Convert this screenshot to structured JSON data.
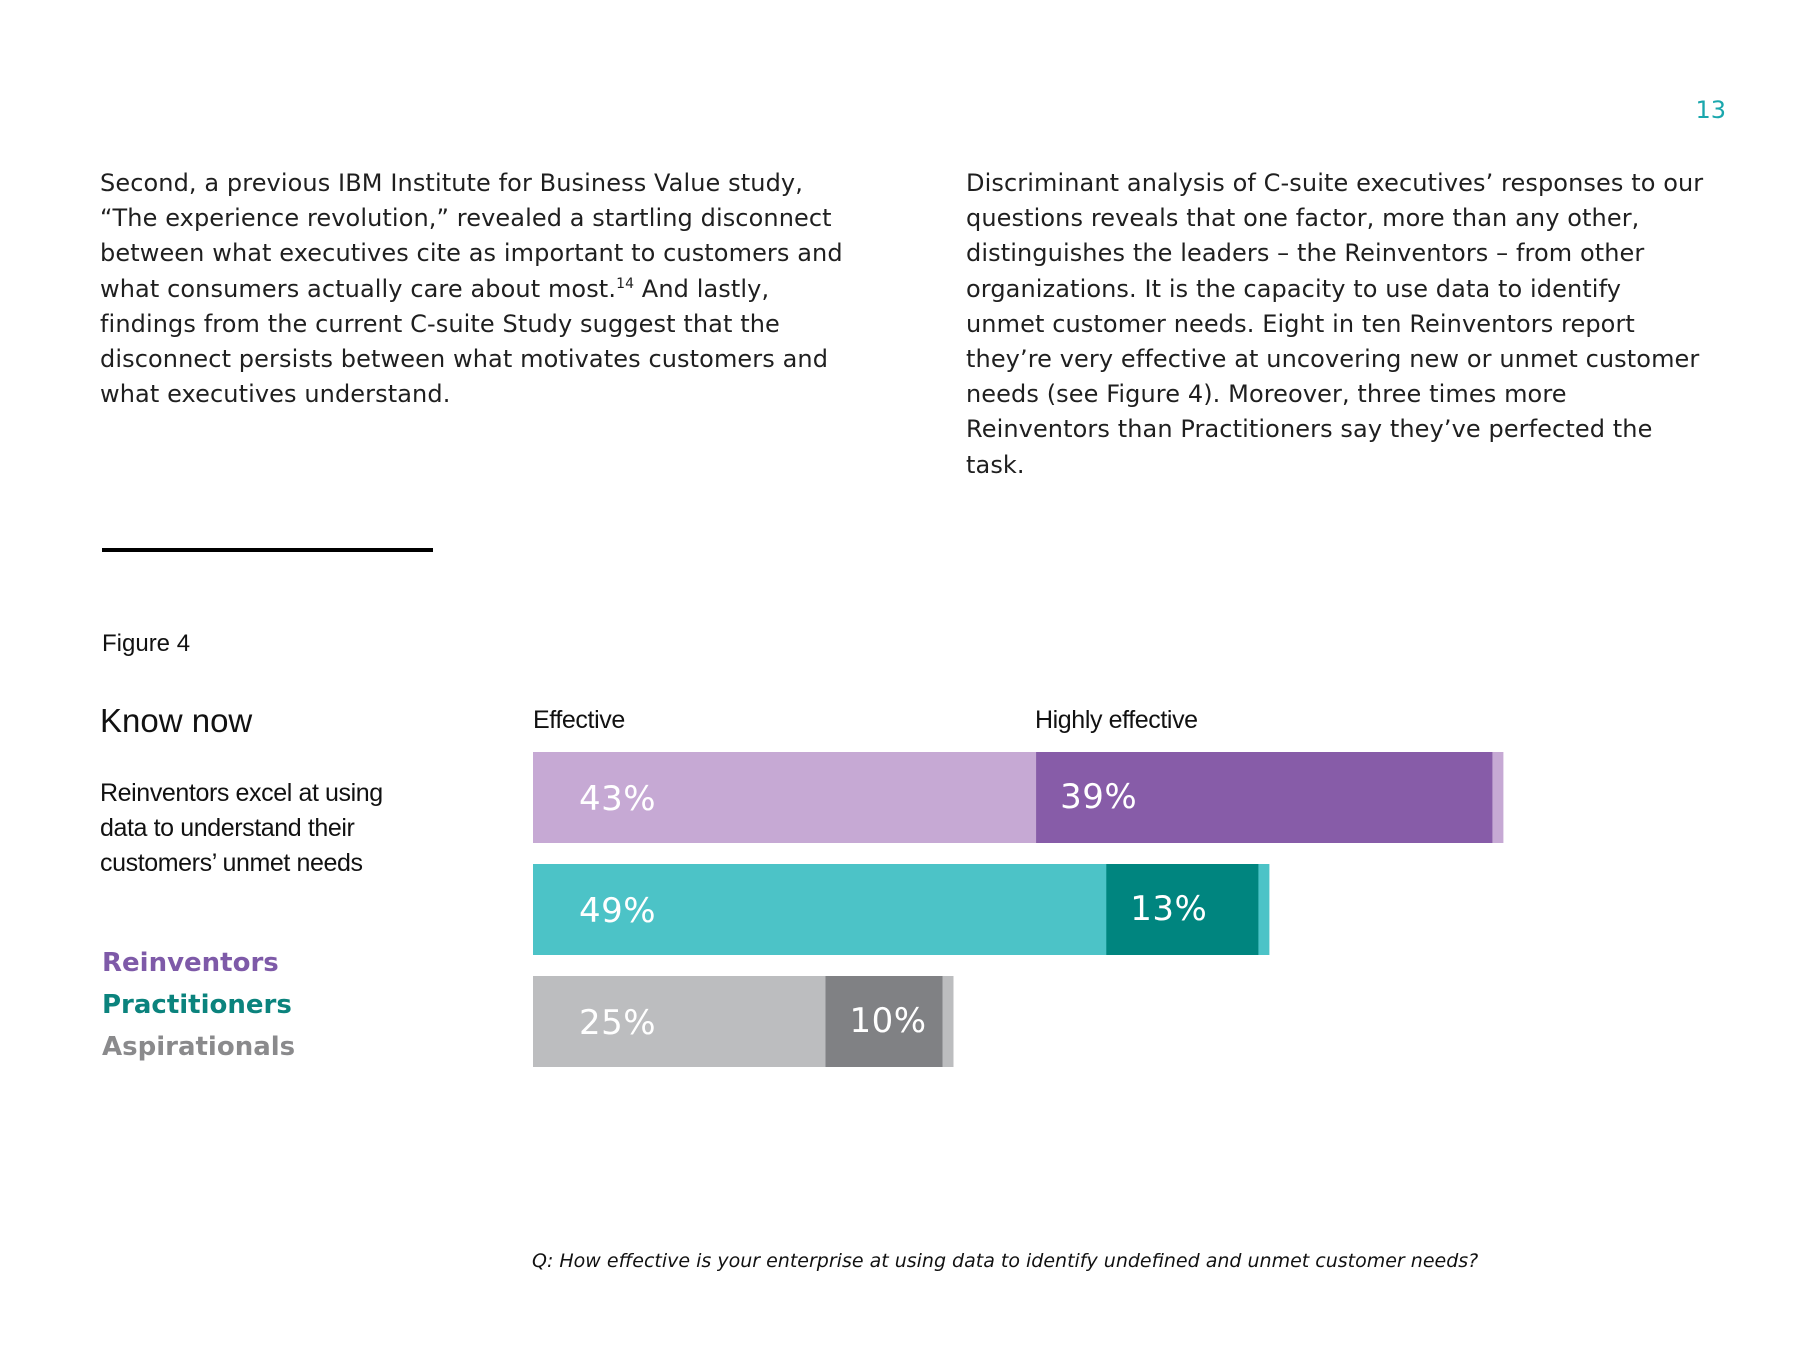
{
  "page_number": "13",
  "text_left": {
    "before_sup": "Second, a previous IBM Institute for Business Value study, “The experience revolution,” revealed a startling disconnect between what executives cite as important to customers and what consumers actually care about most.",
    "sup": "14",
    "after_sup": " And lastly, findings from the current C-suite Study suggest that the disconnect persists between what motivates customers and what executives understand."
  },
  "text_right": "Discriminant analysis of C-suite executives’ responses to our questions reveals that one factor, more than any other, distinguishes the leaders – the Reinventors – from other organizations. It is the capacity to use data to identify unmet customer needs. Eight in ten Reinventors report they’re very effective at uncovering new or unmet customer needs (see Figure 4). Moreover, three times more Reinventors than Practitioners say they’ve perfected the task.",
  "figure": {
    "label": "Figure 4",
    "title": "Know now",
    "subtitle": "Reinventors excel at using data to understand their customers’ unmet needs",
    "question": "Q: How effective is your enterprise at using data to identify undefined and unmet customer needs?"
  },
  "chart_data": {
    "type": "bar",
    "orientation": "horizontal",
    "stacked": true,
    "column_labels": [
      "Effective",
      "Highly effective"
    ],
    "categories": [
      "Reinventors",
      "Practitioners",
      "Aspirationals"
    ],
    "series": [
      {
        "name": "Effective",
        "values": [
          43,
          49,
          25
        ],
        "labels": [
          "43%",
          "49%",
          "25%"
        ]
      },
      {
        "name": "Highly effective",
        "values": [
          39,
          13,
          10
        ],
        "labels": [
          "39%",
          "13%",
          "10%"
        ]
      }
    ],
    "colors": {
      "Reinventors": {
        "legend": "#7e5aa8",
        "effective": "#c6a9d4",
        "highly": "#875ca8"
      },
      "Practitioners": {
        "legend": "#0b837d",
        "effective": "#4cc3c7",
        "highly": "#00857f"
      },
      "Aspirationals": {
        "legend": "#8a8a8c",
        "effective": "#bcbdbf",
        "highly": "#808184"
      }
    },
    "legend_placement": "left",
    "grid": false
  }
}
